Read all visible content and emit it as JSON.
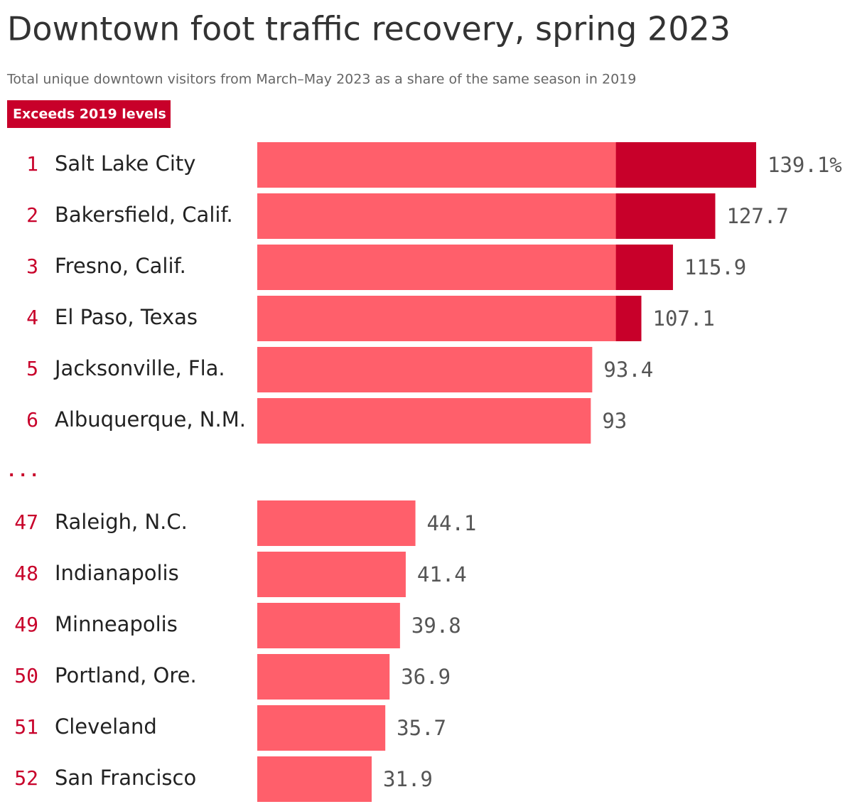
{
  "chart_data": {
    "type": "bar",
    "title": "Downtown foot traffic recovery, spring 2023",
    "subtitle": "Total unique downtown visitors from March–May 2023 as a share of the same season in 2019",
    "legend_label": "Exceeds 2019 levels",
    "gap_label": ". . .",
    "ranks": [
      1,
      2,
      3,
      4,
      5,
      6,
      47,
      48,
      49,
      50,
      51,
      52
    ],
    "categories": [
      "Salt Lake City",
      "Bakersfield, Calif.",
      "Fresno, Calif.",
      "El Paso, Texas",
      "Jacksonville, Fla.",
      "Albuquerque, N.M.",
      "Raleigh, N.C.",
      "Indianapolis",
      "Minneapolis",
      "Portland, Ore.",
      "Cleveland",
      "San Francisco"
    ],
    "values": [
      139.1,
      127.7,
      115.9,
      107.1,
      93.4,
      93,
      44.1,
      41.4,
      39.8,
      36.9,
      35.7,
      31.9
    ],
    "value_labels": [
      "139.1%",
      "127.7",
      "115.9",
      "107.1",
      "93.4",
      "93",
      "44.1",
      "41.4",
      "39.8",
      "36.9",
      "35.7",
      "31.9"
    ],
    "color": "#ff5f6b",
    "highlight_color": "#c8002a",
    "highlight_above": 100
  }
}
